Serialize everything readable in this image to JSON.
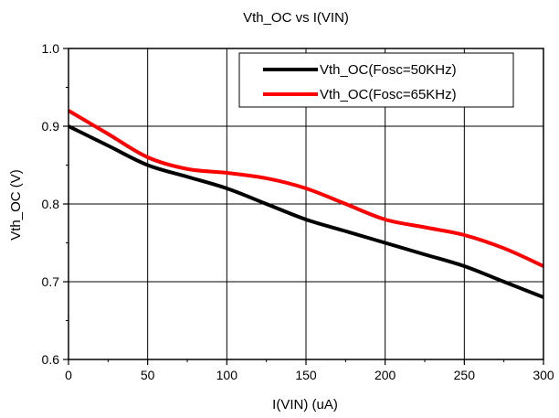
{
  "chart_data": {
    "type": "line",
    "title": "Vth_OC vs I(VIN)",
    "xlabel": "I(VIN) (uA)",
    "ylabel": "Vth_OC (V)",
    "xlim": [
      0,
      300
    ],
    "ylim": [
      0.6,
      1.0
    ],
    "xticks": [
      0,
      50,
      100,
      150,
      200,
      250,
      300
    ],
    "xtick_labels": [
      "0",
      "50",
      "100",
      "150",
      "200",
      "250",
      "300"
    ],
    "yticks": [
      0.6,
      0.7,
      0.8,
      0.9,
      1.0
    ],
    "ytick_labels": [
      "0.6",
      "0.7",
      "0.8",
      "0.9",
      "1.0"
    ],
    "grid": true,
    "legend_position": "top-right",
    "series": [
      {
        "name": "Vth_OC(Fosc=50KHz)",
        "color": "#000000",
        "x": [
          0,
          25,
          50,
          75,
          100,
          125,
          150,
          175,
          200,
          225,
          250,
          275,
          300
        ],
        "y": [
          0.9,
          0.875,
          0.85,
          0.835,
          0.82,
          0.8,
          0.78,
          0.765,
          0.75,
          0.735,
          0.72,
          0.7,
          0.68
        ]
      },
      {
        "name": "Vth_OC(Fosc=65KHz)",
        "color": "#ff0000",
        "x": [
          0,
          25,
          50,
          75,
          100,
          125,
          150,
          175,
          200,
          225,
          250,
          275,
          300
        ],
        "y": [
          0.92,
          0.89,
          0.86,
          0.845,
          0.84,
          0.833,
          0.82,
          0.8,
          0.78,
          0.77,
          0.76,
          0.743,
          0.72
        ]
      }
    ]
  }
}
